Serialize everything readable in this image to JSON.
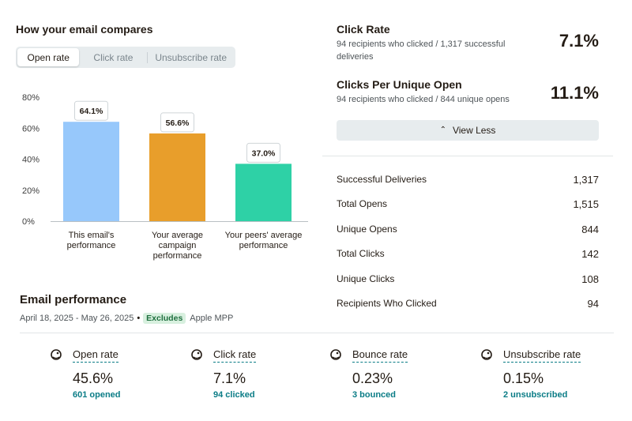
{
  "compare": {
    "title": "How your email compares",
    "tabs": [
      "Open rate",
      "Click rate",
      "Unsubscribe rate"
    ],
    "active_tab": "Open rate"
  },
  "chart_data": {
    "type": "bar",
    "title": "How your email compares",
    "categories": [
      "This email's performance",
      "Your average campaign performance",
      "Your peers' average performance"
    ],
    "category_lines": [
      [
        "This email's",
        "performance"
      ],
      [
        "Your average",
        "campaign",
        "performance"
      ],
      [
        "Your peers' average",
        "performance"
      ]
    ],
    "values": [
      64.1,
      56.6,
      37.0
    ],
    "value_labels": [
      "64.1%",
      "56.6%",
      "37.0%"
    ],
    "colors": [
      "#97c8fb",
      "#e89e2b",
      "#2ed1a6"
    ],
    "yticks": [
      0,
      20,
      40,
      60,
      80
    ],
    "ytick_labels": [
      "0%",
      "20%",
      "40%",
      "60%",
      "80%"
    ],
    "ylim": [
      0,
      80
    ],
    "xlabel": "",
    "ylabel": ""
  },
  "performance": {
    "title": "Email performance",
    "date_range": "April 18, 2025 - May 26, 2025",
    "separator": "•",
    "excludes_label": "Excludes",
    "excludes_value": "Apple MPP",
    "stats": [
      {
        "label": "Open rate",
        "value": "45.6%",
        "sub": "601 opened",
        "icon": "mailchimp-freddie-icon"
      },
      {
        "label": "Click rate",
        "value": "7.1%",
        "sub": "94 clicked",
        "icon": "mailchimp-freddie-icon"
      },
      {
        "label": "Bounce rate",
        "value": "0.23%",
        "sub": "3 bounced",
        "icon": "mailchimp-freddie-icon"
      },
      {
        "label": "Unsubscribe rate",
        "value": "0.15%",
        "sub": "2 unsubscribed",
        "icon": "mailchimp-freddie-icon"
      }
    ]
  },
  "metrics": {
    "click_rate": {
      "title": "Click Rate",
      "desc": "94 recipients who clicked / 1,317 successful deliveries",
      "value": "7.1%"
    },
    "clicks_per_unique_open": {
      "title": "Clicks Per Unique Open",
      "desc": "94 recipients who clicked / 844 unique opens",
      "value": "11.1%"
    },
    "view_less_label": "View Less",
    "view_less_icon": "chevron-up-icon"
  },
  "details": [
    {
      "label": "Successful Deliveries",
      "value": "1,317"
    },
    {
      "label": "Total Opens",
      "value": "1,515"
    },
    {
      "label": "Unique Opens",
      "value": "844"
    },
    {
      "label": "Total Clicks",
      "value": "142"
    },
    {
      "label": "Unique Clicks",
      "value": "108"
    },
    {
      "label": "Recipients Who Clicked",
      "value": "94"
    }
  ],
  "colors": {
    "accent_teal": "#0a7c86",
    "tab_bg": "#e7ecee",
    "excludes_bg": "#d8f0df",
    "excludes_text": "#1f6f3f"
  }
}
